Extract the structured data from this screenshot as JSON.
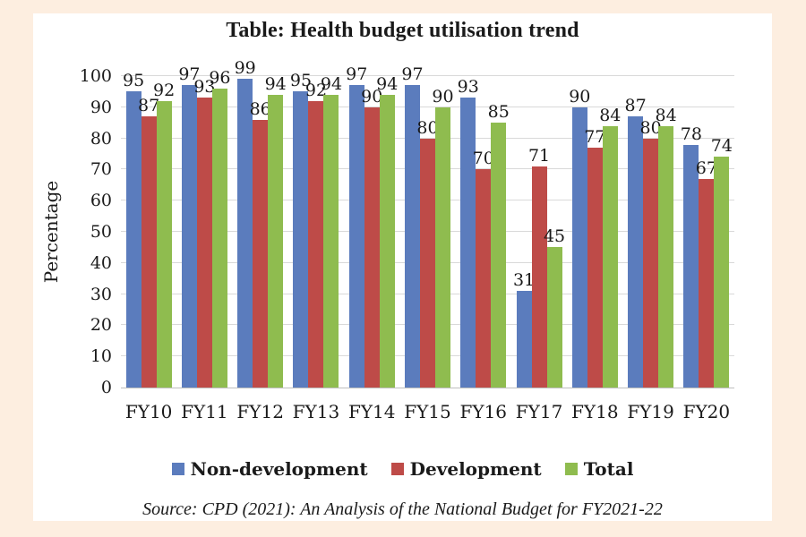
{
  "title": "Table: Health budget utilisation trend",
  "y_axis_title": "Percentage",
  "source": "Source: CPD (2021): An Analysis of the National Budget for FY2021-22",
  "colors": {
    "page_background": "#fdeee0",
    "panel_background": "#ffffff",
    "gridline": "#d9d9d9",
    "axis_line": "#bfbfbf",
    "text": "#1a1a1a"
  },
  "chart_data": {
    "type": "bar",
    "title": "Table: Health budget utilisation trend",
    "xlabel": "",
    "ylabel": "Percentage",
    "ylim": [
      0,
      100
    ],
    "ytick_step": 10,
    "grid": true,
    "legend_position": "bottom",
    "categories": [
      "FY10",
      "FY11",
      "FY12",
      "FY13",
      "FY14",
      "FY15",
      "FY16",
      "FY17",
      "FY18",
      "FY19",
      "FY20"
    ],
    "series": [
      {
        "name": "Non-development",
        "color": "#5b7cbd",
        "values": [
          95,
          97,
          99,
          95,
          97,
          97,
          93,
          31,
          90,
          87,
          78
        ]
      },
      {
        "name": "Development",
        "color": "#be4b48",
        "values": [
          87,
          93,
          86,
          92,
          90,
          80,
          70,
          71,
          77,
          80,
          67
        ]
      },
      {
        "name": "Total",
        "color": "#8fbc4f",
        "values": [
          92,
          96,
          94,
          94,
          94,
          90,
          85,
          45,
          84,
          84,
          74
        ]
      }
    ]
  }
}
